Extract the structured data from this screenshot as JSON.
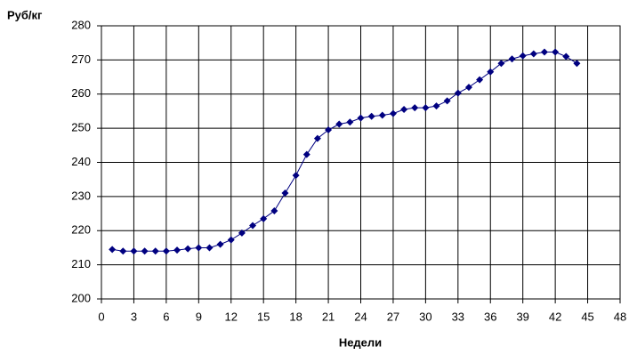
{
  "chart_data": {
    "type": "line",
    "y_label": "Руб/кг",
    "x_label": "Недели",
    "x": [
      1,
      2,
      3,
      4,
      5,
      6,
      7,
      8,
      9,
      10,
      11,
      12,
      13,
      14,
      15,
      16,
      17,
      18,
      19,
      20,
      21,
      22,
      23,
      24,
      25,
      26,
      27,
      28,
      29,
      30,
      31,
      32,
      33,
      34,
      35,
      36,
      37,
      38,
      39,
      40,
      41,
      42,
      43,
      44
    ],
    "values": [
      214.5,
      214,
      214,
      214,
      214,
      214,
      214.3,
      214.7,
      215,
      215,
      216,
      217.3,
      219.3,
      221.5,
      223.5,
      225.8,
      231,
      236.2,
      242.3,
      247,
      249.5,
      251.2,
      251.8,
      253,
      253.5,
      253.8,
      254.3,
      255.5,
      256,
      256,
      256.5,
      258,
      260.3,
      262,
      264.2,
      266.5,
      269,
      270.3,
      271.2,
      271.8,
      272.3,
      272.3,
      271,
      269
    ],
    "color": "#000080",
    "xlim": [
      0,
      48
    ],
    "xticks": [
      0,
      3,
      6,
      9,
      12,
      15,
      18,
      21,
      24,
      27,
      30,
      33,
      36,
      39,
      42,
      45,
      48
    ],
    "ylim": [
      200,
      280
    ],
    "yticks": [
      200,
      210,
      220,
      230,
      240,
      250,
      260,
      270,
      280
    ],
    "grid": true
  }
}
